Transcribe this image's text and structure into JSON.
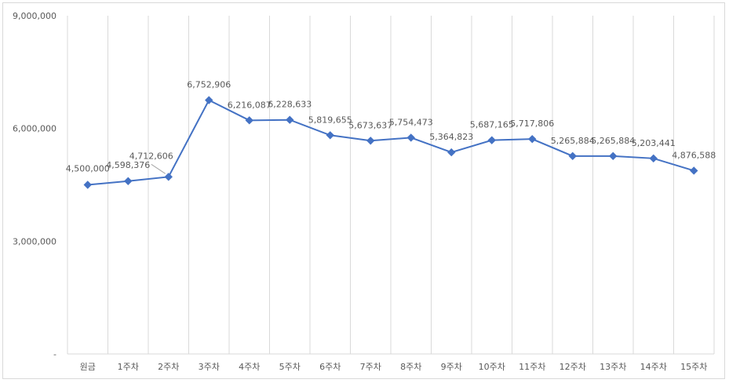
{
  "chart_data": {
    "type": "line",
    "title": "",
    "xlabel": "",
    "ylabel": "",
    "categories": [
      "원금",
      "1주차",
      "2주차",
      "3주차",
      "4주차",
      "5주차",
      "6주차",
      "7주차",
      "8주차",
      "9주차",
      "10주차",
      "11주차",
      "12주차",
      "13주차",
      "14주차",
      "15주차"
    ],
    "series": [
      {
        "values": [
          4500000,
          4598376,
          4712606,
          6752906,
          6216087,
          6228633,
          5819655,
          5673637,
          5754473,
          5364823,
          5687165,
          5717806,
          5265884,
          5265884,
          5203441,
          4876588
        ],
        "data_labels": [
          "4,500,000",
          "4,598,376",
          "4,712,606",
          "6,752,906",
          "6,216,087",
          "6,228,633",
          "5,819,655",
          "5,673,637",
          "5,754,473",
          "5,364,823",
          "5,687,165",
          "5,717,806",
          "5,265,884",
          "5,265,884",
          "5,203,441",
          "4,876,588"
        ]
      }
    ],
    "ylim": [
      0,
      9000000
    ],
    "yticks": [
      0,
      3000000,
      6000000,
      9000000
    ],
    "ytick_labels": [
      "-",
      "3,000,000",
      "6,000,000",
      "9,000,000"
    ],
    "grid": "vertical gridlines",
    "legend": "none",
    "line_color": "#4472c4",
    "grid_color": "#d9d9d9"
  }
}
